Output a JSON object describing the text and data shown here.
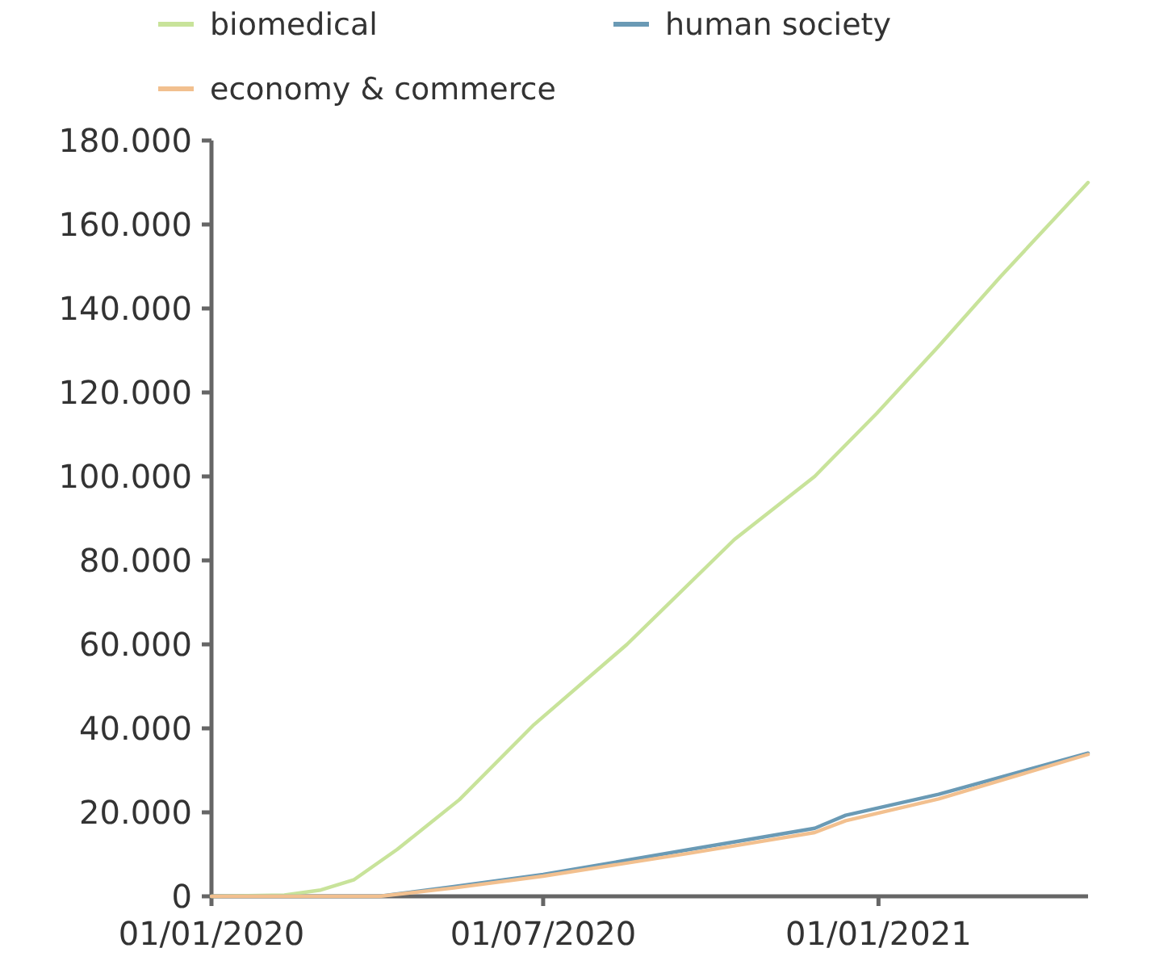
{
  "chart_data": {
    "type": "line",
    "xlim": [
      "2020-01-01",
      "2021-04-26"
    ],
    "ylim": [
      0,
      180000
    ],
    "xticks": [
      {
        "value": "2020-01-01",
        "label": "01/01/2020"
      },
      {
        "value": "2020-07-01",
        "label": "01/07/2020"
      },
      {
        "value": "2021-01-01",
        "label": "01/01/2021"
      }
    ],
    "yticks": [
      {
        "value": 0,
        "label": "0"
      },
      {
        "value": 20000,
        "label": "20.000"
      },
      {
        "value": 40000,
        "label": "40.000"
      },
      {
        "value": 60000,
        "label": "60.000"
      },
      {
        "value": 80000,
        "label": "80.000"
      },
      {
        "value": 100000,
        "label": "100.000"
      },
      {
        "value": 120000,
        "label": "120.000"
      },
      {
        "value": 140000,
        "label": "140.000"
      },
      {
        "value": 160000,
        "label": "160.000"
      },
      {
        "value": 180000,
        "label": "180.000"
      }
    ],
    "grid": false,
    "legend": "top",
    "marker": "none",
    "line_style": "solid",
    "series": [
      {
        "name": "biomedical",
        "color": "#c8e39a",
        "x": [
          "2020-01-01",
          "2020-02-10",
          "2020-03-01",
          "2020-03-19",
          "2020-04-12",
          "2020-05-16",
          "2020-06-26",
          "2020-08-16",
          "2020-10-14",
          "2020-11-27",
          "2020-12-31",
          "2021-02-03",
          "2021-03-09",
          "2021-04-26"
        ],
        "values": [
          0,
          300,
          1500,
          3900,
          11200,
          23000,
          40900,
          60000,
          85000,
          100000,
          115000,
          131000,
          147600,
          170000
        ]
      },
      {
        "name": "human society",
        "color": "#6a9ab5",
        "x": [
          "2020-01-01",
          "2020-04-02",
          "2020-05-13",
          "2020-07-01",
          "2020-09-20",
          "2020-11-27",
          "2020-12-14",
          "2021-02-03",
          "2021-04-26"
        ],
        "values": [
          0,
          0,
          2300,
          5200,
          11200,
          16200,
          19300,
          24300,
          34100
        ]
      },
      {
        "name": "economy & commerce",
        "color": "#f2c08f",
        "x": [
          "2020-01-01",
          "2020-04-02",
          "2020-05-13",
          "2020-07-01",
          "2020-09-20",
          "2020-11-27",
          "2020-12-14",
          "2021-02-03",
          "2021-04-26"
        ],
        "values": [
          0,
          0,
          2000,
          4800,
          10300,
          15200,
          18000,
          23200,
          33800
        ]
      }
    ]
  }
}
